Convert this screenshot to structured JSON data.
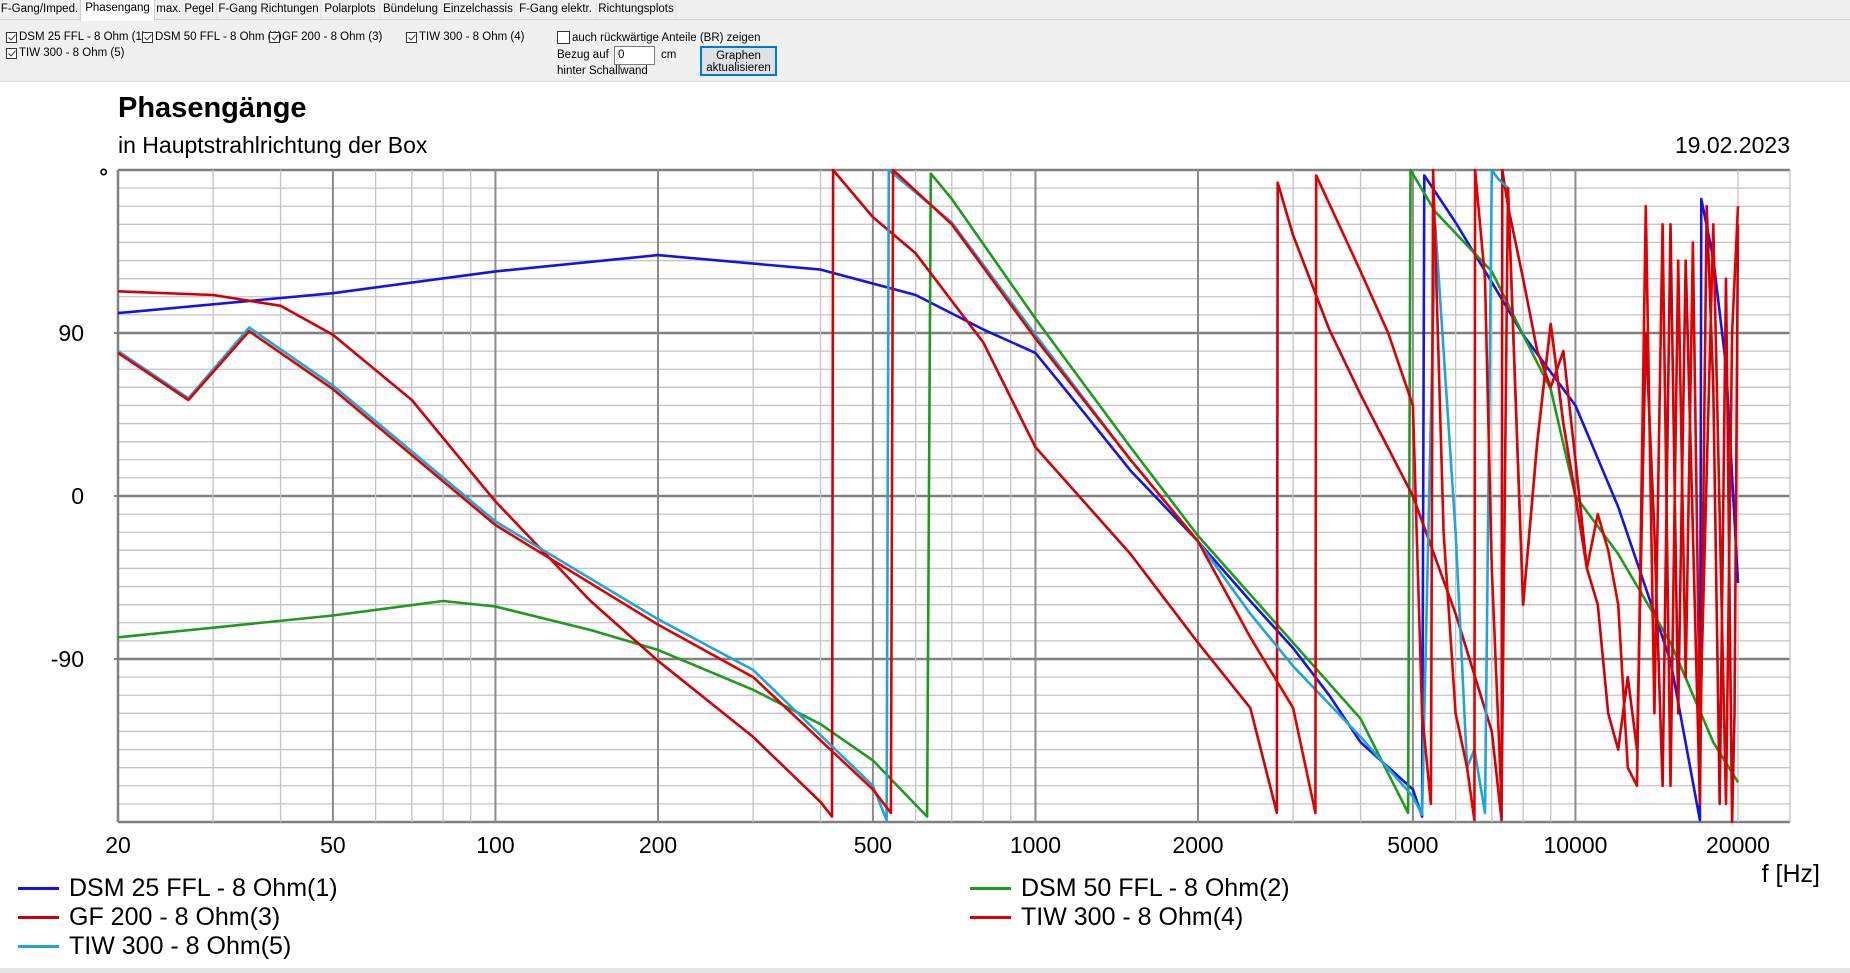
{
  "tabs": [
    "F-Gang/Imped.",
    "Phasengang",
    "max. Pegel",
    "F-Gang Richtungen",
    "Polarplots",
    "Bündelung",
    "Einzelchassis",
    "F-Gang elektr.",
    "Richtungsplots"
  ],
  "active_tab": "Phasengang",
  "checkboxes": [
    {
      "label": "DSM 25 FFL - 8 Ohm (1)",
      "checked": true
    },
    {
      "label": "DSM 50 FFL - 8 Ohm (2)",
      "checked": true
    },
    {
      "label": "GF 200 - 8 Ohm (3)",
      "checked": true
    },
    {
      "label": "TIW 300 - 8 Ohm (4)",
      "checked": true
    },
    {
      "label": "TIW 300 - 8 Ohm (5)",
      "checked": true
    }
  ],
  "options": {
    "back_label": "auch rückwärtige Anteile (BR) zeigen",
    "back_checked": false,
    "ref_label": "Bezug auf",
    "ref_value": "0",
    "ref_unit": "cm",
    "ref_label2": "hinter Schallwand",
    "update_button": "Graphen aktualisieren"
  },
  "colors": {
    "blue": "#1414e6",
    "green": "#1e9b1e",
    "red": "#e00000",
    "darkred": "#d0000a",
    "cyan": "#1ea6d6"
  },
  "chart_data": {
    "type": "line",
    "title": "Phasengänge",
    "subtitle": "in Hauptstrahlrichtung der Box",
    "date": "19.02.2023",
    "ylabel": "°",
    "xlabel": "f [Hz]",
    "xscale": "log",
    "xlim": [
      20,
      25000
    ],
    "ylim": [
      -180,
      180
    ],
    "grid": true,
    "legend": "bottom",
    "yticks": [
      {
        "v": 90,
        "label": "90"
      },
      {
        "v": 0,
        "label": "0"
      },
      {
        "v": -90,
        "label": "-90"
      }
    ],
    "xticks": [
      {
        "v": 20,
        "label": "20"
      },
      {
        "v": 50,
        "label": "50"
      },
      {
        "v": 100,
        "label": "100"
      },
      {
        "v": 200,
        "label": "200"
      },
      {
        "v": 500,
        "label": "500"
      },
      {
        "v": 1000,
        "label": "1000"
      },
      {
        "v": 2000,
        "label": "2000"
      },
      {
        "v": 5000,
        "label": "5000"
      },
      {
        "v": 10000,
        "label": "10000"
      },
      {
        "v": 20000,
        "label": "20000"
      }
    ],
    "series": [
      {
        "name": "DSM 25 FFL - 8 Ohm(1)",
        "color": "#1414e6",
        "points": [
          [
            20,
            101
          ],
          [
            50,
            112
          ],
          [
            100,
            124
          ],
          [
            200,
            133
          ],
          [
            400,
            125
          ],
          [
            600,
            111
          ],
          [
            800,
            92
          ],
          [
            1000,
            79
          ],
          [
            1200,
            50
          ],
          [
            1500,
            14
          ],
          [
            2000,
            -25
          ],
          [
            2500,
            -58
          ],
          [
            3000,
            -84
          ],
          [
            3500,
            -110
          ],
          [
            4000,
            -136
          ],
          [
            5000,
            -162
          ],
          [
            5200,
            -177
          ],
          [
            5250,
            177
          ],
          [
            6000,
            151
          ],
          [
            7000,
            118
          ],
          [
            8000,
            89
          ],
          [
            10000,
            50
          ],
          [
            12000,
            -6
          ],
          [
            15000,
            -91
          ],
          [
            17000,
            -179
          ],
          [
            17100,
            164
          ],
          [
            18000,
            131
          ],
          [
            19000,
            72
          ],
          [
            20000,
            -48
          ]
        ]
      },
      {
        "name": "DSM 50 FFL - 8 Ohm(2)",
        "color": "#1e9b1e",
        "points": [
          [
            20,
            -78
          ],
          [
            50,
            -66
          ],
          [
            80,
            -58
          ],
          [
            100,
            -61
          ],
          [
            150,
            -74
          ],
          [
            200,
            -85
          ],
          [
            300,
            -107
          ],
          [
            400,
            -126
          ],
          [
            500,
            -146
          ],
          [
            630,
            -177
          ],
          [
            640,
            178
          ],
          [
            700,
            164
          ],
          [
            1000,
            98
          ],
          [
            1200,
            66
          ],
          [
            1500,
            27
          ],
          [
            2000,
            -22
          ],
          [
            3000,
            -81
          ],
          [
            4000,
            -123
          ],
          [
            4900,
            -175
          ],
          [
            4950,
            180
          ],
          [
            5500,
            157
          ],
          [
            7000,
            124
          ],
          [
            8000,
            89
          ],
          [
            9000,
            59
          ],
          [
            10000,
            0
          ],
          [
            12000,
            -32
          ],
          [
            15000,
            -81
          ],
          [
            18000,
            -136
          ],
          [
            20000,
            -158
          ]
        ]
      },
      {
        "name": "GF 200 - 8 Ohm(3)",
        "color": "#d0000a",
        "points": [
          [
            20,
            113
          ],
          [
            30,
            111
          ],
          [
            40,
            105
          ],
          [
            50,
            89
          ],
          [
            70,
            53
          ],
          [
            100,
            -3
          ],
          [
            150,
            -58
          ],
          [
            200,
            -91
          ],
          [
            300,
            -133
          ],
          [
            400,
            -169
          ],
          [
            420,
            -177
          ],
          [
            422,
            180
          ],
          [
            500,
            154
          ],
          [
            600,
            134
          ],
          [
            800,
            85
          ],
          [
            1000,
            27
          ],
          [
            1500,
            -32
          ],
          [
            2000,
            -81
          ],
          [
            2500,
            -117
          ],
          [
            2800,
            -175
          ],
          [
            2810,
            173
          ],
          [
            3000,
            144
          ],
          [
            3500,
            92
          ],
          [
            4000,
            56
          ],
          [
            5000,
            0
          ],
          [
            6000,
            -65
          ],
          [
            7000,
            -130
          ],
          [
            7300,
            -179
          ],
          [
            7320,
            180
          ],
          [
            7500,
            160
          ],
          [
            8000,
            120
          ],
          [
            8500,
            80
          ],
          [
            9000,
            60
          ],
          [
            9500,
            80
          ],
          [
            10000,
            20
          ],
          [
            10500,
            -40
          ],
          [
            11000,
            -60
          ],
          [
            11500,
            -120
          ],
          [
            12000,
            -140
          ],
          [
            12500,
            -100
          ],
          [
            13000,
            -140
          ],
          [
            13500,
            90
          ],
          [
            14000,
            -20
          ],
          [
            14500,
            -160
          ],
          [
            15000,
            150
          ],
          [
            15500,
            -120
          ],
          [
            16000,
            130
          ],
          [
            16500,
            -20
          ],
          [
            17000,
            -170
          ],
          [
            17500,
            160
          ],
          [
            18000,
            60
          ],
          [
            18500,
            -170
          ],
          [
            19000,
            120
          ],
          [
            19500,
            -180
          ],
          [
            19700,
            -120
          ],
          [
            20000,
            150
          ]
        ]
      },
      {
        "name": "TIW 300 - 8 Ohm(5)",
        "color": "#1ea6d6",
        "points": [
          [
            20,
            80
          ],
          [
            27,
            54
          ],
          [
            35,
            93
          ],
          [
            50,
            61
          ],
          [
            100,
            -14
          ],
          [
            200,
            -68
          ],
          [
            300,
            -96
          ],
          [
            500,
            -160
          ],
          [
            530,
            -179
          ],
          [
            535,
            180
          ],
          [
            700,
            151
          ],
          [
            1000,
            89
          ],
          [
            1500,
            20
          ],
          [
            2000,
            -25
          ],
          [
            2500,
            -65
          ],
          [
            3000,
            -94
          ],
          [
            4000,
            -133
          ],
          [
            5000,
            -166
          ],
          [
            5200,
            -176
          ],
          [
            5500,
            150
          ],
          [
            6000,
            -20
          ],
          [
            6300,
            -150
          ],
          [
            6500,
            -140
          ],
          [
            6800,
            -175
          ],
          [
            7000,
            180
          ],
          [
            7200,
            175
          ],
          [
            7500,
            170
          ],
          [
            7800,
            30
          ],
          [
            8000,
            -60
          ],
          [
            8500,
            30
          ],
          [
            9000,
            95
          ],
          [
            9500,
            40
          ],
          [
            10000,
            0
          ]
        ]
      },
      {
        "name": "TIW 300 - 8 Ohm(4)",
        "color": "#e00000",
        "points": [
          [
            20,
            79
          ],
          [
            27,
            53
          ],
          [
            35,
            91
          ],
          [
            50,
            59
          ],
          [
            100,
            -16
          ],
          [
            200,
            -71
          ],
          [
            300,
            -100
          ],
          [
            500,
            -162
          ],
          [
            540,
            -175
          ],
          [
            545,
            180
          ],
          [
            700,
            150
          ],
          [
            1000,
            87
          ],
          [
            1500,
            20
          ],
          [
            2000,
            -25
          ],
          [
            2500,
            -78
          ],
          [
            3000,
            -117
          ],
          [
            3300,
            -175
          ],
          [
            3310,
            177
          ],
          [
            4000,
            124
          ],
          [
            4500,
            90
          ],
          [
            5000,
            50
          ],
          [
            5200,
            -120
          ],
          [
            5400,
            -170
          ],
          [
            5450,
            180
          ],
          [
            5700,
            -20
          ],
          [
            6000,
            -120
          ],
          [
            6300,
            -150
          ],
          [
            6500,
            -179
          ],
          [
            6520,
            180
          ],
          [
            6800,
            120
          ],
          [
            7000,
            -40
          ],
          [
            7300,
            -170
          ],
          [
            7500,
            170
          ],
          [
            7800,
            30
          ],
          [
            8000,
            -60
          ],
          [
            8500,
            30
          ],
          [
            9000,
            95
          ],
          [
            9500,
            40
          ],
          [
            10000,
            0
          ],
          [
            10500,
            -40
          ],
          [
            11000,
            -10
          ],
          [
            11500,
            -30
          ],
          [
            12000,
            -60
          ],
          [
            12500,
            -150
          ],
          [
            13000,
            -160
          ],
          [
            13500,
            160
          ],
          [
            14000,
            -120
          ],
          [
            14500,
            150
          ],
          [
            15000,
            -160
          ],
          [
            15500,
            130
          ],
          [
            16000,
            -100
          ],
          [
            16500,
            140
          ],
          [
            17000,
            -130
          ],
          [
            18000,
            150
          ],
          [
            19000,
            -170
          ],
          [
            19500,
            90
          ],
          [
            20000,
            160
          ]
        ]
      }
    ],
    "legend_entries": [
      {
        "label": "DSM 25 FFL - 8 Ohm(1)",
        "color": "#1414e6"
      },
      {
        "label": "DSM 50 FFL - 8 Ohm(2)",
        "color": "#1e9b1e"
      },
      {
        "label": "GF 200 - 8 Ohm(3)",
        "color": "#d0000a"
      },
      {
        "label": "TIW 300 - 8 Ohm(4)",
        "color": "#e00000"
      },
      {
        "label": "TIW 300 - 8 Ohm(5)",
        "color": "#1ea6d6"
      }
    ]
  }
}
